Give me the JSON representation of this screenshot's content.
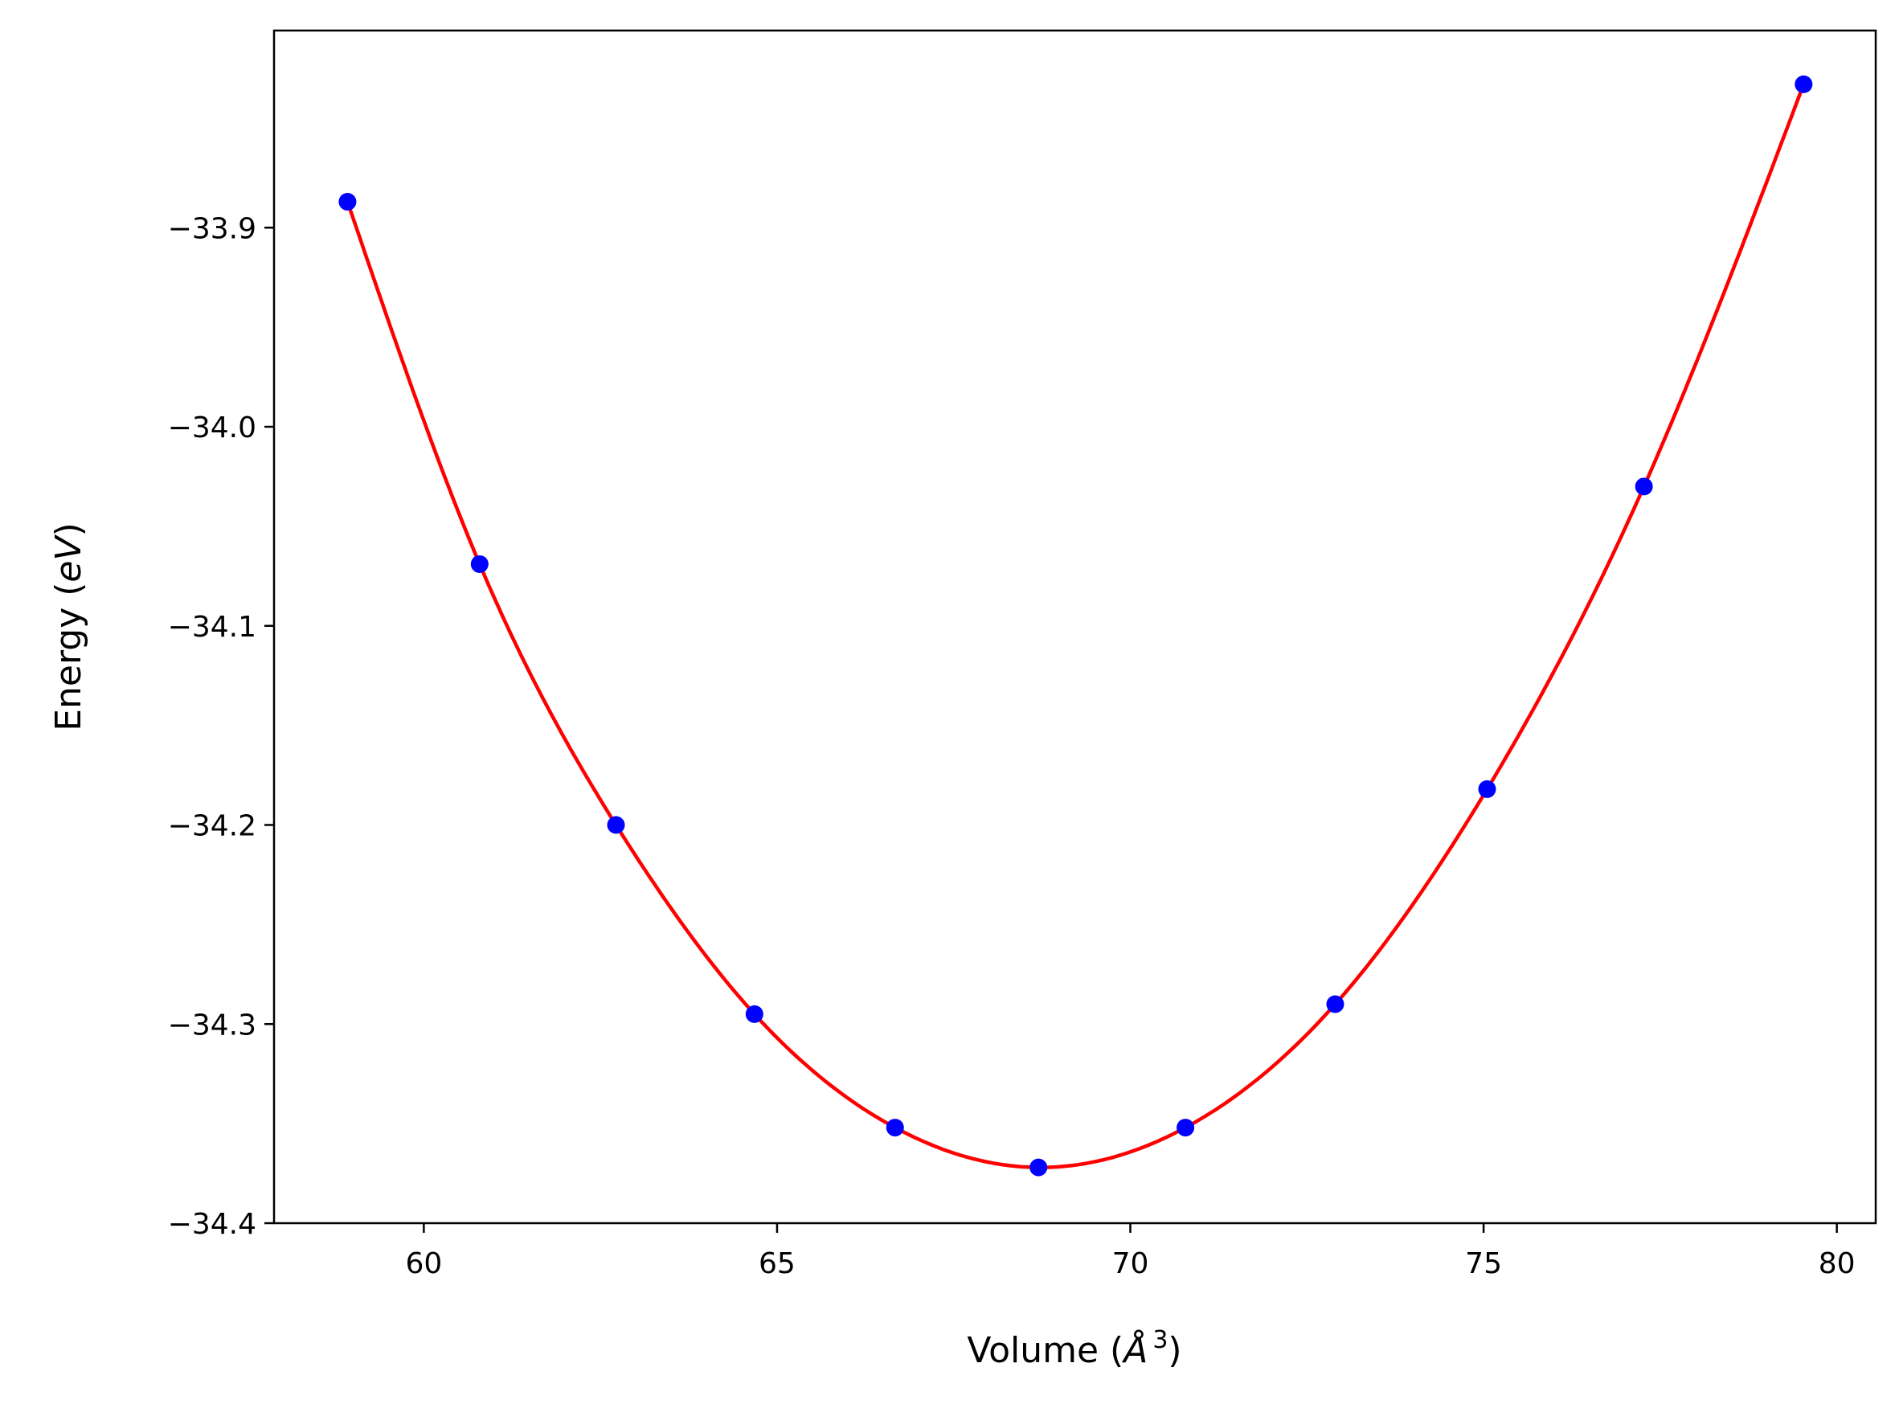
{
  "chart_data": {
    "type": "scatter",
    "title": "",
    "xlabel": "Volume (Å³)",
    "xlabel_parts": {
      "prefix": "Volume (",
      "symbol": "Å",
      "sup": "3",
      "suffix": ")"
    },
    "ylabel": "Energy (eV)",
    "ylabel_parts": {
      "prefix": "Energy (",
      "italic": "eV",
      "suffix": ")"
    },
    "xlim": [
      57.88,
      80.55
    ],
    "ylim": [
      -34.4,
      -33.801
    ],
    "xticks": [
      60,
      65,
      70,
      75,
      80
    ],
    "xtick_labels": [
      "60",
      "65",
      "70",
      "75",
      "80"
    ],
    "yticks": [
      -33.9,
      -34.0,
      -34.1,
      -34.2,
      -34.3,
      -34.4
    ],
    "ytick_labels": [
      "−33.9",
      "−34.0",
      "−34.1",
      "−34.2",
      "−34.3",
      "−34.4"
    ],
    "grid": false,
    "series": [
      {
        "kind": "points",
        "color": "#0000ff",
        "x": [
          58.92,
          60.79,
          62.72,
          64.68,
          66.67,
          68.7,
          70.78,
          72.9,
          75.05,
          77.27,
          79.53
        ],
        "y": [
          -33.887,
          -34.069,
          -34.2,
          -34.295,
          -34.352,
          -34.372,
          -34.352,
          -34.29,
          -34.182,
          -34.03,
          -33.828
        ]
      },
      {
        "kind": "fit-line",
        "color": "#ff0000"
      }
    ]
  }
}
